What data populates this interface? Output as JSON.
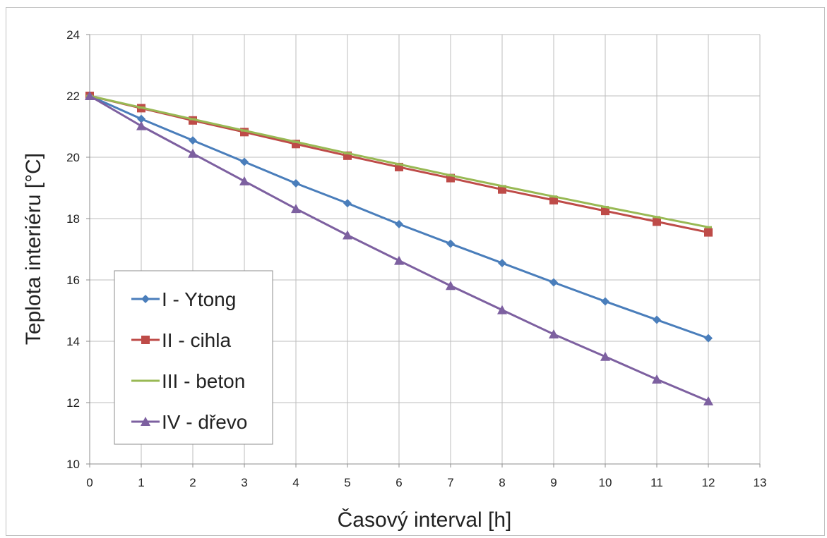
{
  "chart_data": {
    "type": "line",
    "title": "",
    "xlabel": "Časový interval [h]",
    "ylabel": "Teplota interiéru [°C]",
    "xlim": [
      0,
      13
    ],
    "ylim": [
      10,
      24
    ],
    "x_ticks": [
      0,
      1,
      2,
      3,
      4,
      5,
      6,
      7,
      8,
      9,
      10,
      11,
      12,
      13
    ],
    "y_ticks": [
      10,
      12,
      14,
      16,
      18,
      20,
      22,
      24
    ],
    "grid": true,
    "legend_position": "bottom-left",
    "x": [
      0,
      1,
      2,
      3,
      4,
      5,
      6,
      7,
      8,
      9,
      10,
      11,
      12
    ],
    "series": [
      {
        "name": "I - Ytong",
        "color": "#4a7ebb",
        "marker": "diamond",
        "values": [
          22.0,
          21.25,
          20.55,
          19.85,
          19.15,
          18.5,
          17.82,
          17.18,
          16.55,
          15.92,
          15.3,
          14.7,
          14.1
        ]
      },
      {
        "name": "II - cihla",
        "color": "#be4b48",
        "marker": "square",
        "values": [
          22.0,
          21.6,
          21.2,
          20.82,
          20.43,
          20.05,
          19.68,
          19.32,
          18.95,
          18.6,
          18.25,
          17.9,
          17.55
        ]
      },
      {
        "name": "III - beton",
        "color": "#98b954",
        "marker": "dash",
        "values": [
          22.0,
          21.62,
          21.24,
          20.87,
          20.5,
          20.13,
          19.77,
          19.41,
          19.06,
          18.72,
          18.38,
          18.05,
          17.72
        ]
      },
      {
        "name": "IV - dřevo",
        "color": "#7d60a0",
        "marker": "triangle",
        "values": [
          22.0,
          21.02,
          20.12,
          19.22,
          18.32,
          17.46,
          16.63,
          15.81,
          15.02,
          14.23,
          13.5,
          12.76,
          12.05
        ]
      }
    ]
  }
}
